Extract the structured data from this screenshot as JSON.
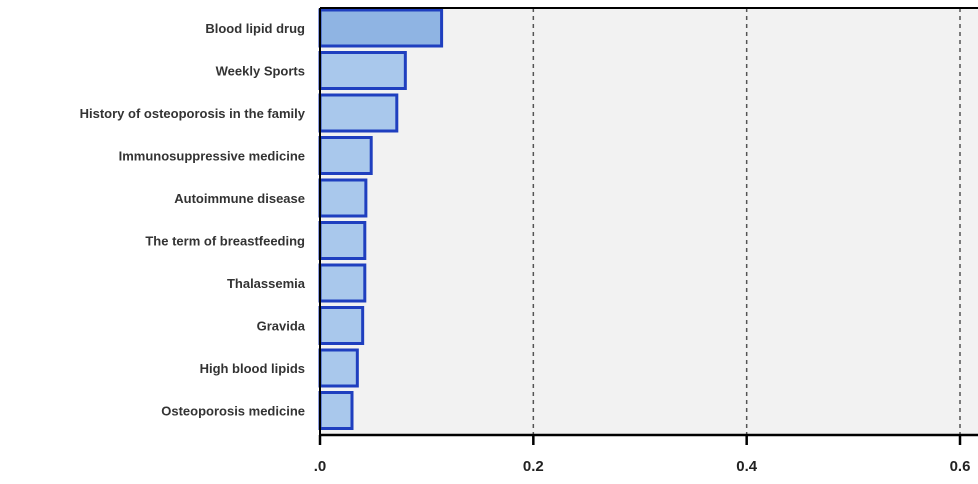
{
  "chart_data": {
    "type": "bar",
    "orientation": "horizontal",
    "title": "",
    "xlabel": "",
    "ylabel": "",
    "categories": [
      "Blood lipid drug",
      "Weekly Sports",
      "History of osteoporosis in the family",
      "Immunosuppressive medicine",
      "Autoimmune disease",
      "The term of breastfeeding",
      "Thalassemia",
      "Gravida",
      "High blood lipids",
      "Osteoporosis medicine"
    ],
    "values": [
      0.114,
      0.08,
      0.072,
      0.048,
      0.043,
      0.042,
      0.042,
      0.04,
      0.035,
      0.03
    ],
    "xlim": [
      0,
      0.6
    ],
    "xticks": [
      0,
      0.2,
      0.4,
      0.6
    ],
    "xtick_labels": [
      ".0",
      "0.2",
      "0.4",
      "0.6"
    ],
    "grid": "vertical dashed",
    "legend": "none",
    "colors": {
      "bar_fill_top": "#8fb4e3",
      "bar_fill": "#a9c8ec",
      "bar_border": "#1f3fbf",
      "plot_background": "#f2f2f2",
      "axis": "#000000",
      "grid": "#555555"
    }
  }
}
